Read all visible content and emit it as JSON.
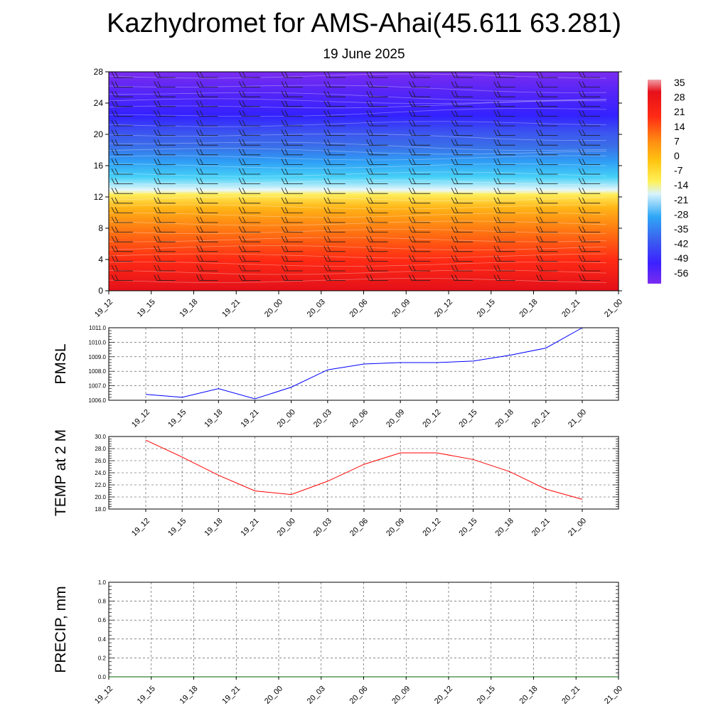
{
  "header": {
    "title": "Kazhydromet for AMS-Ahai(45.611 63.281)",
    "date": "19 June 2025"
  },
  "colors": {
    "pmsl_line": "#0000ff",
    "temp_line": "#ff0000",
    "precip_line": "#006400",
    "colormap": [
      "#7b2cf0",
      "#3c20ff",
      "#3a63ee",
      "#2fa8f7",
      "#47d4f7",
      "#d8f3fb",
      "#fff25a",
      "#ffc512",
      "#ff9c12",
      "#ff6b10",
      "#ff2a14",
      "#e6101a",
      "#f0a0a8"
    ]
  },
  "chart_data": [
    {
      "id": "temperature-cross-section",
      "type": "heatmap",
      "x": [
        "19_12",
        "19_15",
        "19_18",
        "19_21",
        "20_00",
        "20_03",
        "20_06",
        "20_09",
        "20_12",
        "20_15",
        "20_18",
        "20_21",
        "21_00"
      ],
      "y_ticks": [
        0,
        4,
        8,
        12,
        16,
        20,
        24,
        28
      ],
      "ylim": [
        0,
        28
      ],
      "colorbar_ticks": [
        35,
        28,
        21,
        14,
        7,
        0,
        -7,
        -14,
        -21,
        -28,
        -35,
        -42,
        -49,
        -56
      ],
      "overlay": "wind barbs"
    },
    {
      "id": "pmsl",
      "type": "line",
      "ylabel": "PMSL",
      "x": [
        "19_12",
        "19_15",
        "19_18",
        "19_21",
        "20_00",
        "20_03",
        "20_06",
        "20_09",
        "20_12",
        "20_15",
        "20_18",
        "20_21",
        "21_00"
      ],
      "values": [
        1006.4,
        1006.2,
        1006.8,
        1006.1,
        1006.9,
        1008.1,
        1008.5,
        1008.6,
        1008.6,
        1008.7,
        1009.1,
        1009.6,
        1011.0
      ],
      "y_ticks": [
        "1006.0",
        "1007.0",
        "1008.0",
        "1009.0",
        "1010.0",
        "1011.0"
      ],
      "ylim": [
        1006,
        1011
      ],
      "grid": true
    },
    {
      "id": "temp2m",
      "type": "line",
      "ylabel": "TEMP at 2 M",
      "x": [
        "19_12",
        "19_15",
        "19_18",
        "19_21",
        "20_00",
        "20_03",
        "20_06",
        "20_09",
        "20_12",
        "20_15",
        "20_18",
        "20_21",
        "21_00"
      ],
      "values": [
        29.4,
        26.6,
        23.6,
        21.0,
        20.4,
        22.6,
        25.4,
        27.3,
        27.3,
        26.2,
        24.2,
        21.3,
        19.6
      ],
      "y_ticks": [
        "18.0",
        "20.0",
        "22.0",
        "24.0",
        "26.0",
        "28.0",
        "30.0"
      ],
      "ylim": [
        18,
        30
      ],
      "grid": true
    },
    {
      "id": "precip",
      "type": "line",
      "ylabel": "PRECIP, mm",
      "x": [
        "19_12",
        "19_15",
        "19_18",
        "19_21",
        "20_00",
        "20_03",
        "20_06",
        "20_09",
        "20_12",
        "20_15",
        "20_18",
        "20_21",
        "21_00"
      ],
      "values": [
        0,
        0,
        0,
        0,
        0,
        0,
        0,
        0,
        0,
        0,
        0,
        0,
        0
      ],
      "y_ticks": [
        "0.0",
        "0.2",
        "0.4",
        "0.6",
        "0.8",
        "1.0"
      ],
      "ylim": [
        0,
        1
      ],
      "grid": true
    }
  ]
}
